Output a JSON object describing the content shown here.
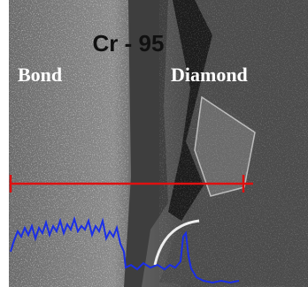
{
  "labels": {
    "sample": "Cr - 95",
    "left": "Bond",
    "right": "Diamond"
  }
}
